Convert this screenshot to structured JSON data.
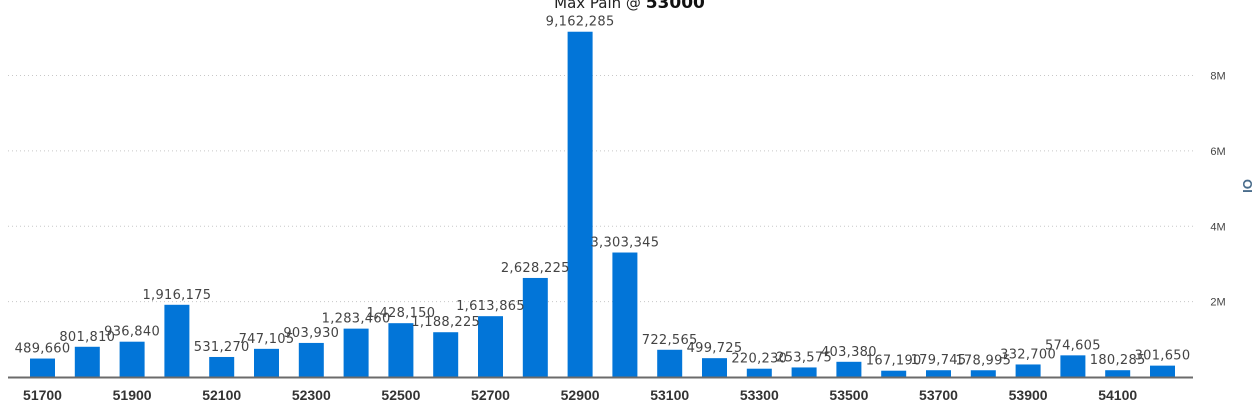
{
  "chart_data": {
    "type": "bar",
    "title_prefix": "Max Pain @ ",
    "title_value": "53000",
    "ylabel": "OI",
    "ylim": [
      0,
      9500000
    ],
    "yticks": [
      2000000,
      4000000,
      6000000,
      8000000
    ],
    "ytick_labels": [
      "2M",
      "4M",
      "6M",
      "8M"
    ],
    "grid": true,
    "bar_color": "#0275d8",
    "categories": [
      "51700",
      "51800",
      "51900",
      "52000",
      "52100",
      "52200",
      "52300",
      "52400",
      "52500",
      "52600",
      "52700",
      "52800",
      "52900",
      "53000",
      "53100",
      "53200",
      "53300",
      "53400",
      "53500",
      "53600",
      "53700",
      "53800",
      "53900",
      "54000",
      "54100",
      "54200"
    ],
    "visible_category_labels": [
      "51700",
      "51900",
      "52100",
      "52300",
      "52500",
      "52700",
      "52900",
      "53100",
      "53300",
      "53500",
      "53700",
      "53900",
      "54100"
    ],
    "values": [
      489660,
      801810,
      936840,
      1916175,
      531270,
      747105,
      903930,
      1283460,
      1428150,
      1188225,
      1613865,
      2628225,
      9162285,
      3303345,
      722565,
      499725,
      220230,
      253575,
      403380,
      167190,
      179745,
      178995,
      332700,
      574605,
      180285,
      301650
    ],
    "value_labels": [
      "489,660",
      "801,810",
      "936,840",
      "1,916,175",
      "531,270",
      "747,105",
      "903,930",
      "1,283,460",
      "1,428,150",
      "1,188,225",
      "1,613,865",
      "2,628,225",
      "9,162,285",
      "3,303,345",
      "722,565",
      "499,725",
      "220,230",
      "253,575",
      "403,380",
      "167,190",
      "179,745",
      "178,995",
      "332,700",
      "574,605",
      "180,285",
      "301,650"
    ]
  }
}
